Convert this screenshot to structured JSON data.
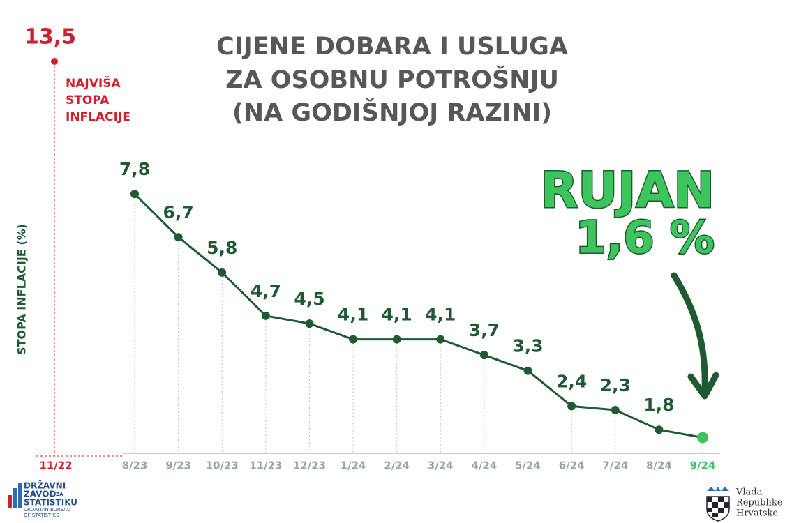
{
  "chart_data": {
    "type": "line",
    "title": [
      "CIJENE DOBARA I USLUGA",
      "ZA OSOBNU POTROŠNJU",
      "(NA GODIŠNJOJ RAZINI)"
    ],
    "y_label": "STOPA INFLACIJE (%)",
    "peak": {
      "category": "11/22",
      "value": 13.5,
      "value_label": "13,5",
      "annotation": [
        "NAJVIŠA",
        "STOPA",
        "INFLACIJE"
      ],
      "color": "#d0202e"
    },
    "categories": [
      "8/23",
      "9/23",
      "10/23",
      "11/23",
      "12/23",
      "1/24",
      "2/24",
      "3/24",
      "4/24",
      "5/24",
      "6/24",
      "7/24",
      "8/24",
      "9/24"
    ],
    "series": [
      {
        "color": "#1f5a32",
        "values": [
          7.8,
          6.7,
          5.8,
          4.7,
          4.5,
          4.1,
          4.1,
          4.1,
          3.7,
          3.3,
          2.4,
          2.3,
          1.8,
          1.6
        ],
        "value_labels": [
          "7,8",
          "6,7",
          "5,8",
          "4,7",
          "4,5",
          "4,1",
          "4,1",
          "4,1",
          "3,7",
          "3,3",
          "2,4",
          "2,3",
          "1,8",
          null
        ],
        "marker_colors": [
          "#1f5a32",
          "#1f5a32",
          "#1f5a32",
          "#1f5a32",
          "#1f5a32",
          "#1f5a32",
          "#1f5a32",
          "#1f5a32",
          "#1f5a32",
          "#1f5a32",
          "#1f5a32",
          "#1f5a32",
          "#1f5a32",
          "#3ec45c"
        ]
      }
    ],
    "ylim": [
      1.2,
      8.3
    ],
    "callout": [
      "RUJAN",
      "1,6 %"
    ]
  },
  "logos": {
    "left": [
      "DRŽAVNI",
      "ZAVOD",
      "ZA",
      "STATISTIKU",
      "CROATIAN BUREAU",
      "OF STATISTICS"
    ],
    "right": [
      "Vlada",
      "Republike",
      "Hrvatske"
    ]
  }
}
